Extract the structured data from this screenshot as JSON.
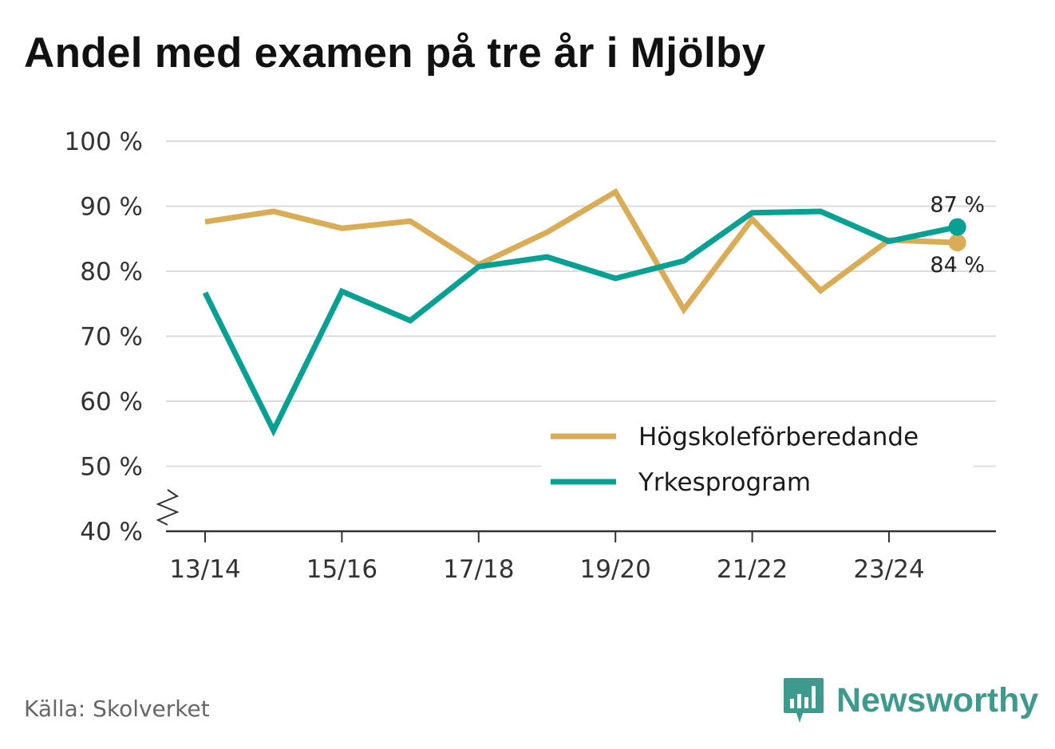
{
  "title": "Andel med examen på tre år i Mjölby",
  "source": "Källa: Skolverket",
  "brand": {
    "name": "Newsworthy",
    "icon": "newsworthy-logo-icon",
    "color": "#3e9a8c"
  },
  "chart_data": {
    "type": "line",
    "title": "Andel med examen på tre år i Mjölby",
    "xlabel": "",
    "ylabel": "",
    "x": [
      "13/14",
      "14/15",
      "15/16",
      "16/17",
      "17/18",
      "18/19",
      "19/20",
      "20/21",
      "21/22",
      "22/23",
      "23/24",
      "24/25"
    ],
    "x_tick_labels": [
      "13/14",
      "15/16",
      "17/18",
      "19/20",
      "21/22",
      "23/24"
    ],
    "y_ticks": [
      40,
      50,
      60,
      70,
      80,
      90,
      100
    ],
    "y_tick_suffix": " %",
    "ylim": [
      40,
      100
    ],
    "y_axis_break": true,
    "grid": true,
    "legend_position": "bottom-right",
    "series": [
      {
        "name": "Högskoleförberedande",
        "color": "#d9ad58",
        "values": [
          87.6,
          89.2,
          86.6,
          87.7,
          81.0,
          86.0,
          92.2,
          74.1,
          88.0,
          77.0,
          84.8,
          84.4
        ],
        "end_label": "84 %"
      },
      {
        "name": "Yrkesprogram",
        "color": "#07a092",
        "values": [
          76.7,
          55.5,
          76.9,
          72.4,
          80.7,
          82.2,
          78.9,
          81.6,
          89.0,
          89.2,
          84.6,
          86.8
        ],
        "end_label": "87 %"
      }
    ]
  }
}
